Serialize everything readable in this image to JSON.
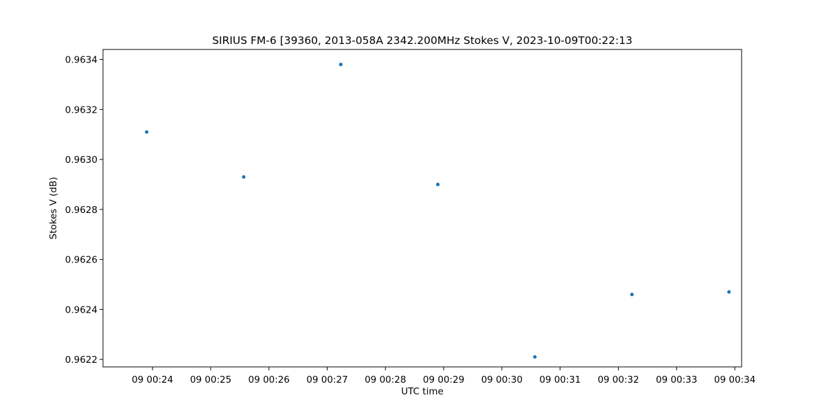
{
  "chart_data": {
    "type": "scatter",
    "title": "SIRIUS FM-6 [39360, 2013-058A 2342.200MHz Stokes V, 2023-10-09T00:22:13",
    "xlabel": "UTC time",
    "ylabel": "Stokes V (dB)",
    "x_tick_labels": [
      "09 00:24",
      "09 00:25",
      "09 00:26",
      "09 00:27",
      "09 00:28",
      "09 00:29",
      "09 00:30",
      "09 00:31",
      "09 00:32",
      "09 00:33",
      "09 00:34"
    ],
    "x_tick_values": [
      "2023-10-09T00:24:00",
      "2023-10-09T00:25:00",
      "2023-10-09T00:26:00",
      "2023-10-09T00:27:00",
      "2023-10-09T00:28:00",
      "2023-10-09T00:29:00",
      "2023-10-09T00:30:00",
      "2023-10-09T00:31:00",
      "2023-10-09T00:32:00",
      "2023-10-09T00:33:00",
      "2023-10-09T00:34:00"
    ],
    "xlim": [
      "2023-10-09T00:23:09",
      "2023-10-09T00:34:07"
    ],
    "y_tick_labels": [
      "0.9622",
      "0.9624",
      "0.9626",
      "0.9628",
      "0.9630",
      "0.9632",
      "0.9634"
    ],
    "y_tick_values": [
      0.9622,
      0.9624,
      0.9626,
      0.9628,
      0.963,
      0.9632,
      0.9634
    ],
    "ylim": [
      0.96217,
      0.96344
    ],
    "grid": false,
    "marker_color": "#1f77b4",
    "series": [
      {
        "x": [
          "2023-10-09T00:23:54",
          "2023-10-09T00:25:34",
          "2023-10-09T00:27:14",
          "2023-10-09T00:28:54",
          "2023-10-09T00:30:34",
          "2023-10-09T00:32:14",
          "2023-10-09T00:33:54"
        ],
        "y": [
          0.96311,
          0.96293,
          0.96338,
          0.9629,
          0.96221,
          0.96246,
          0.96247
        ]
      }
    ]
  }
}
